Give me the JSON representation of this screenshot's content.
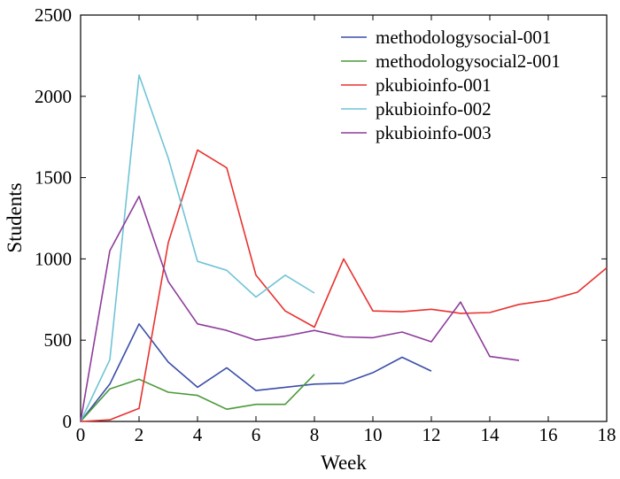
{
  "chart_data": {
    "type": "line",
    "title": "",
    "xlabel": "Week",
    "ylabel": "Students",
    "xlim": [
      0,
      18
    ],
    "ylim": [
      0,
      2500
    ],
    "xticks": [
      "0",
      "2",
      "4",
      "6",
      "8",
      "10",
      "12",
      "14",
      "16",
      "18"
    ],
    "yticks": [
      "0",
      "500",
      "1000",
      "1500",
      "2000",
      "2500"
    ],
    "grid": false,
    "legend_position": "top-right",
    "series": [
      {
        "name": "methodologysocial-001",
        "color": "#3a4ea8",
        "x": [
          0,
          1,
          2,
          3,
          4,
          5,
          6,
          7,
          8,
          9,
          10,
          11,
          12
        ],
        "y": [
          0,
          230,
          600,
          365,
          210,
          330,
          190,
          210,
          230,
          235,
          300,
          395,
          310
        ]
      },
      {
        "name": "methodologysocial2-001",
        "color": "#4b9a3a",
        "x": [
          0,
          1,
          2,
          3,
          4,
          5,
          6,
          7,
          8
        ],
        "y": [
          0,
          200,
          260,
          180,
          160,
          75,
          105,
          105,
          290
        ]
      },
      {
        "name": "pkubioinfo-001",
        "color": "#e8322f",
        "x": [
          0,
          1,
          2,
          3,
          4,
          5,
          6,
          7,
          8,
          9,
          10,
          11,
          12,
          13,
          14,
          15,
          16,
          17,
          18
        ],
        "y": [
          0,
          10,
          80,
          1100,
          1670,
          1560,
          900,
          680,
          580,
          1000,
          680,
          675,
          690,
          665,
          670,
          720,
          745,
          795,
          945
        ]
      },
      {
        "name": "pkubioinfo-002",
        "color": "#70c4d6",
        "x": [
          0,
          1,
          2,
          3,
          4,
          5,
          6,
          7,
          8
        ],
        "y": [
          0,
          380,
          2130,
          1620,
          985,
          930,
          765,
          900,
          790
        ]
      },
      {
        "name": "pkubioinfo-003",
        "color": "#8e3c9a",
        "x": [
          0,
          1,
          2,
          3,
          4,
          5,
          6,
          7,
          8,
          9,
          10,
          11,
          12,
          13,
          14,
          15
        ],
        "y": [
          0,
          1050,
          1385,
          860,
          600,
          560,
          500,
          525,
          560,
          520,
          515,
          550,
          490,
          735,
          400,
          375
        ]
      }
    ]
  }
}
